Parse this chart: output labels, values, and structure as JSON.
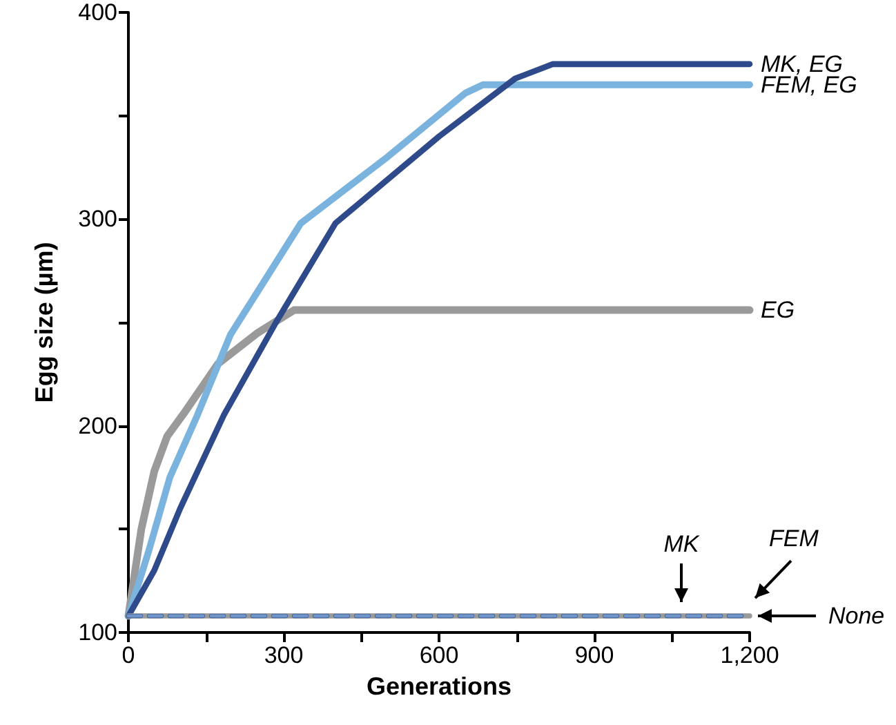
{
  "chart_data": {
    "type": "line",
    "xlabel": "Generations",
    "ylabel": "Egg size (µm)",
    "xlim": [
      0,
      1200
    ],
    "xticks": [
      0,
      {
        "value": 150,
        "label": null
      },
      300,
      {
        "value": 450,
        "label": null
      },
      600,
      {
        "value": 750,
        "label": null
      },
      900,
      {
        "value": 1050,
        "label": null
      },
      {
        "value": 1200,
        "label": "1,200"
      }
    ],
    "ylim": [
      100,
      400
    ],
    "yticks": [
      100,
      {
        "value": 150,
        "label": null
      },
      200,
      {
        "value": 250,
        "label": null
      },
      300,
      {
        "value": 350,
        "label": null
      },
      400
    ],
    "grid": false,
    "legend": false,
    "marker": "none",
    "series": [
      {
        "name": "EG",
        "color": "#9a9a9a",
        "line_style": "solid",
        "x": [
          0,
          25,
          50,
          75,
          110,
          173,
          250,
          320,
          1200
        ],
        "values": [
          108,
          150,
          178,
          195,
          207,
          230,
          245,
          256,
          256
        ]
      },
      {
        "name": "FEM, EG",
        "color": "#7ab3dd",
        "line_style": "solid",
        "x": [
          0,
          40,
          80,
          133,
          197,
          333,
          500,
          651,
          685,
          1200
        ],
        "values": [
          108,
          140,
          175,
          205,
          244,
          298,
          330,
          361,
          365,
          365
        ]
      },
      {
        "name": "MK, EG",
        "color": "#2e4a8a",
        "line_style": "solid",
        "x": [
          0,
          50,
          100,
          184,
          285,
          400,
          600,
          747,
          820,
          1200
        ],
        "values": [
          108,
          130,
          160,
          205,
          250,
          298,
          340,
          368,
          375,
          375
        ]
      },
      {
        "name": "None",
        "color": "#9a9a9a",
        "line_style": "solid",
        "x": [
          0,
          1200
        ],
        "values": [
          108,
          108
        ]
      },
      {
        "name": "MK",
        "color": "#2e4a8a",
        "line_style": "dashed",
        "x": [
          0,
          1200
        ],
        "values": [
          108,
          108
        ]
      },
      {
        "name": "FEM",
        "color": "#6f95c8",
        "line_style": "dashed",
        "x": [
          0,
          1200
        ],
        "values": [
          108,
          108
        ]
      }
    ]
  }
}
